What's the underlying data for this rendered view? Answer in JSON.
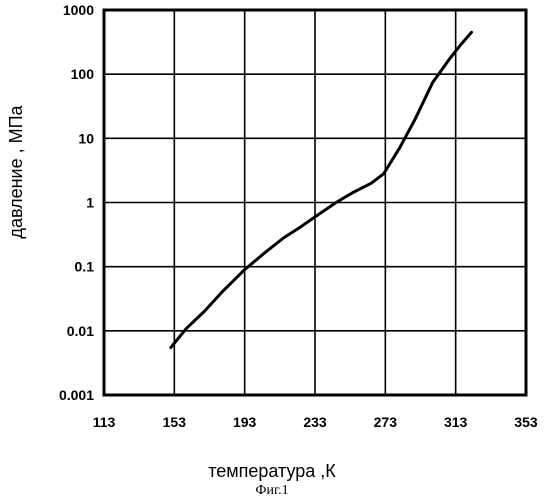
{
  "chart_data": {
    "type": "line",
    "title": "",
    "xlabel": "температура ,К",
    "ylabel": "давление , МПа",
    "caption": "Фиг.1",
    "x_scale": "linear",
    "y_scale": "log",
    "xlim": [
      113,
      353
    ],
    "ylim": [
      0.001,
      1000
    ],
    "grid": true,
    "legend": "none",
    "x_ticks": [
      "113",
      "153",
      "193",
      "233",
      "273",
      "313",
      "353"
    ],
    "y_ticks": [
      "0.001",
      "0.01",
      "0.1",
      "1",
      "10",
      "100",
      "1000"
    ],
    "series": [
      {
        "color": "#000000",
        "x": [
          151,
          160,
          170,
          180,
          193,
          205,
          215,
          225,
          235,
          245,
          255,
          265,
          272,
          281,
          290,
          300,
          310,
          316,
          322
        ],
        "y": [
          0.0055,
          0.011,
          0.02,
          0.04,
          0.09,
          0.17,
          0.28,
          0.42,
          0.65,
          1.0,
          1.45,
          2.0,
          2.8,
          7.0,
          20,
          75,
          180,
          290,
          450
        ]
      }
    ]
  }
}
